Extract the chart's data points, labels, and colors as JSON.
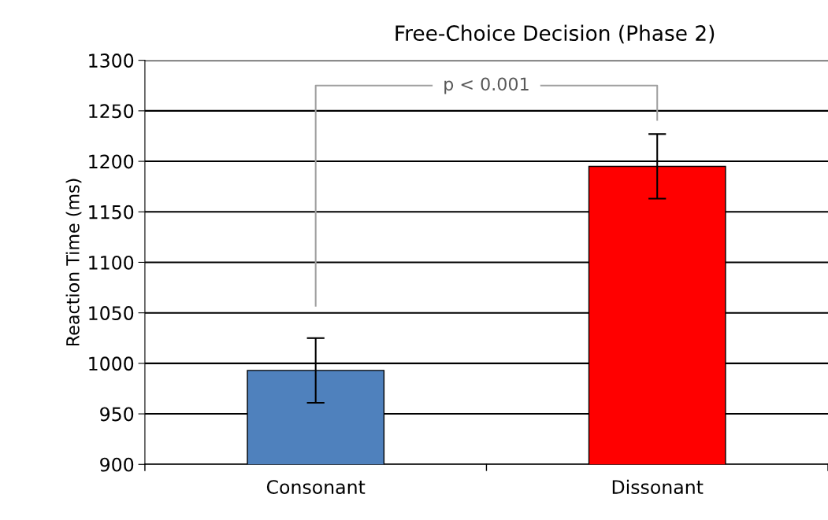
{
  "chart_data": {
    "type": "bar",
    "title": "Free-Choice Decision (Phase 2)",
    "ylabel": "Reaction Time (ms)",
    "categories": [
      "Consonant",
      "Dissonant"
    ],
    "values": [
      993,
      1195
    ],
    "colors": [
      "#4f81bd",
      "#ff0000"
    ],
    "errors": [
      32,
      32
    ],
    "ylim": [
      900,
      1300
    ],
    "yticks": [
      900,
      950,
      1000,
      1050,
      1100,
      1150,
      1200,
      1250,
      1300
    ],
    "grid": "y",
    "annotations": [
      "p < 0.001"
    ]
  }
}
